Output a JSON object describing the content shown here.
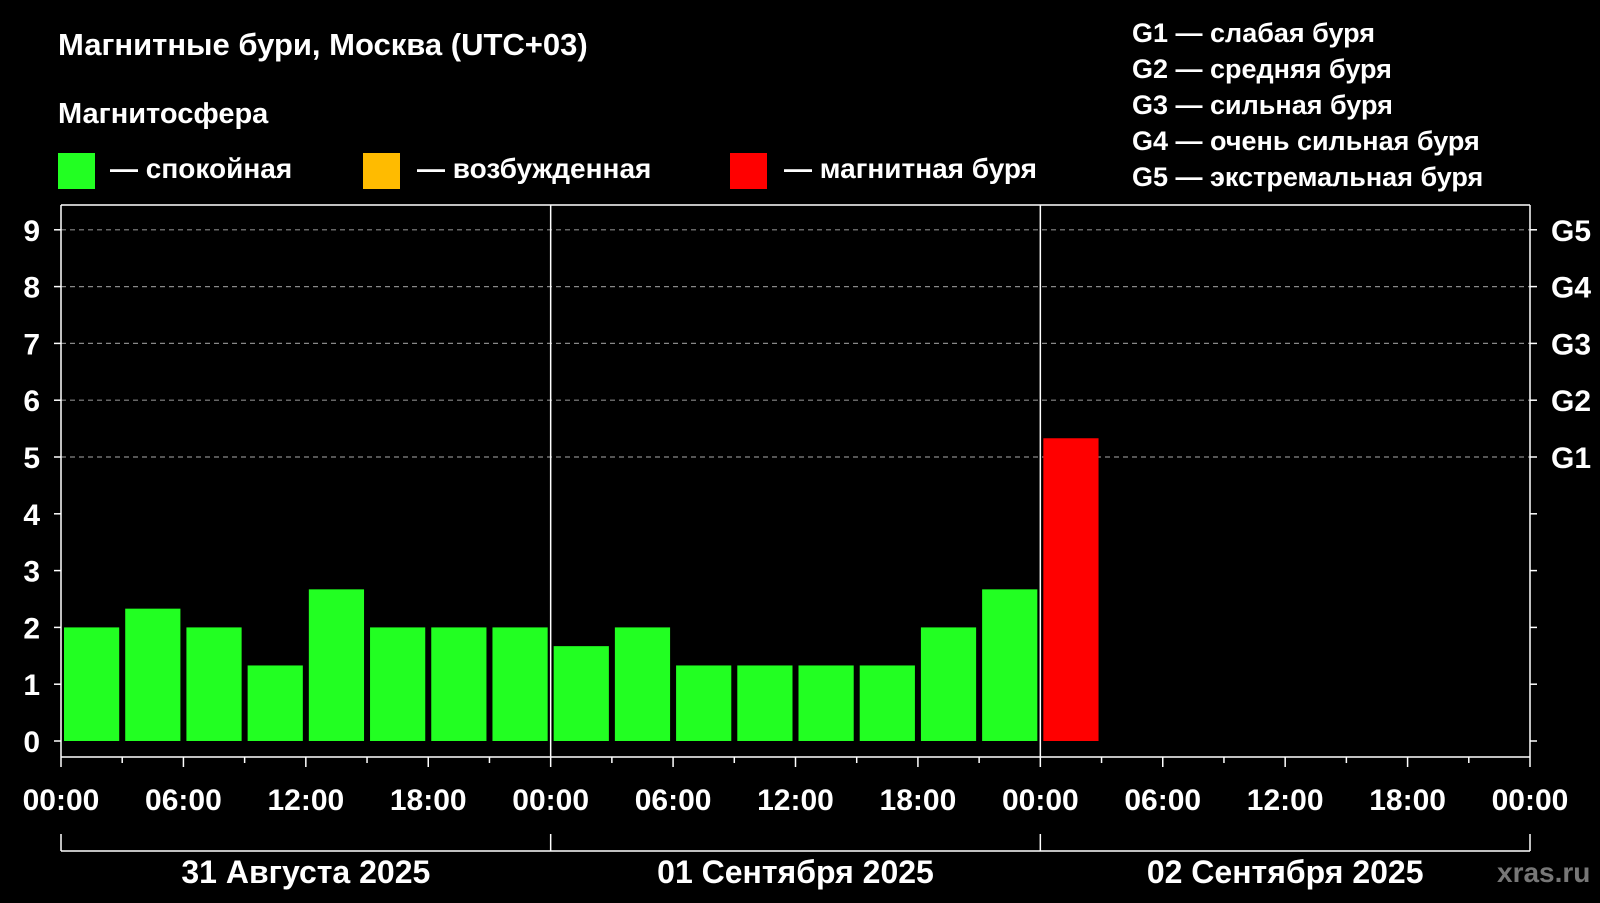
{
  "title": "Магнитные бури, Москва (UTC+03)",
  "subtitle": "Магнитосфера",
  "legend": [
    {
      "label": "— спокойная",
      "color": "#22ff22"
    },
    {
      "label": "— возбужденная",
      "color": "#ffbb00"
    },
    {
      "label": "— магнитная буря",
      "color": "#ff0000"
    }
  ],
  "g_scale": [
    "G1 — слабая буря",
    "G2 — средняя буря",
    "G3 — сильная буря",
    "G4 — очень сильная буря",
    "G5 — экстремальная буря"
  ],
  "watermark": "xras.ru",
  "colors": {
    "background": "#000000",
    "quiet": "#22ff22",
    "excited": "#ffbb00",
    "storm": "#ff0000",
    "axis": "#ffffff",
    "grid": "#888888"
  },
  "chart_data": {
    "type": "bar",
    "xlabel": "",
    "ylabel": "",
    "ylim": [
      0,
      9
    ],
    "yticks": [
      "0",
      "1",
      "2",
      "3",
      "4",
      "5",
      "6",
      "7",
      "8",
      "9"
    ],
    "g_levels": [
      {
        "label": "G1",
        "value": 5
      },
      {
        "label": "G2",
        "value": 6
      },
      {
        "label": "G3",
        "value": 7
      },
      {
        "label": "G4",
        "value": 8
      },
      {
        "label": "G5",
        "value": 9
      }
    ],
    "grid": "dashed horizontal at 5–9",
    "x_tick_labels": [
      "00:00",
      "06:00",
      "12:00",
      "18:00",
      "00:00",
      "06:00",
      "12:00",
      "18:00",
      "00:00",
      "06:00",
      "12:00",
      "18:00",
      "00:00"
    ],
    "days": [
      "31 Августа 2025",
      "01 Сентября 2025",
      "02 Сентября 2025"
    ],
    "interval_hours": 3,
    "values": [
      2.0,
      2.33,
      2.0,
      1.33,
      2.67,
      2.0,
      2.0,
      2.0,
      1.67,
      2.0,
      1.33,
      1.33,
      1.33,
      1.33,
      2.0,
      2.67,
      5.33
    ],
    "levels": [
      "quiet",
      "quiet",
      "quiet",
      "quiet",
      "quiet",
      "quiet",
      "quiet",
      "quiet",
      "quiet",
      "quiet",
      "quiet",
      "quiet",
      "quiet",
      "quiet",
      "quiet",
      "quiet",
      "storm"
    ],
    "total_slots": 24
  }
}
